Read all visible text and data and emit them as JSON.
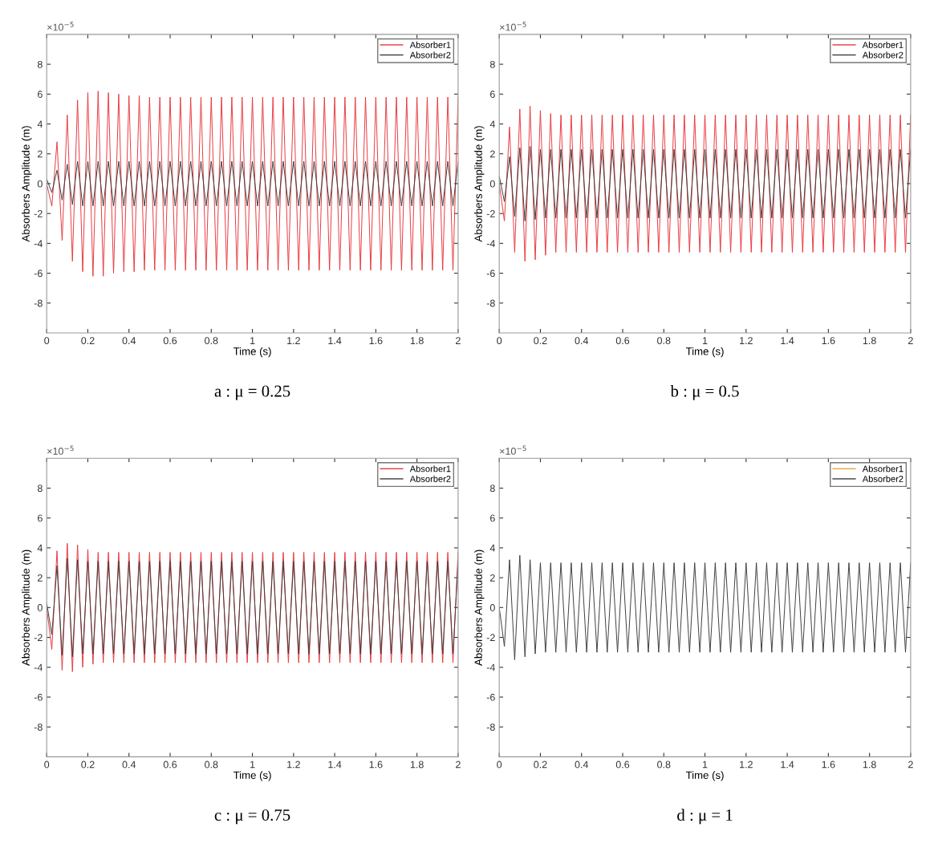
{
  "chart_data": [
    {
      "type": "line",
      "title": "a : μ = 0.25",
      "xlabel": "Time (s)",
      "ylabel": "Absorbers Amplitude (m)",
      "annotations": [
        "×10$^{−5}$"
      ],
      "xlim": [
        0,
        2
      ],
      "ylim": [
        -10,
        10
      ],
      "xticks": [
        0,
        0.2,
        0.4,
        0.6,
        0.8,
        1,
        1.2,
        1.4,
        1.6,
        1.8,
        2
      ],
      "yticks": [
        -8,
        -6,
        -4,
        -2,
        0,
        2,
        4,
        6,
        8
      ],
      "legend": "top right",
      "grid": false,
      "x": [
        0,
        0.025,
        0.05,
        0.075,
        0.1,
        0.125,
        0.15,
        0.175,
        0.2,
        0.225,
        0.25,
        0.275,
        0.3,
        0.325,
        0.35,
        0.375,
        0.4,
        0.425,
        0.45,
        0.475,
        0.5,
        0.525,
        0.55,
        0.575,
        0.6,
        0.625,
        0.65,
        0.675,
        0.7,
        0.725,
        0.75,
        0.775,
        0.8,
        0.825,
        0.85,
        0.875,
        0.9,
        0.925,
        0.95,
        0.975,
        1,
        1.025,
        1.05,
        1.075,
        1.1,
        1.125,
        1.15,
        1.175,
        1.2,
        1.225,
        1.25,
        1.275,
        1.3,
        1.325,
        1.35,
        1.375,
        1.4,
        1.425,
        1.45,
        1.475,
        1.5,
        1.525,
        1.55,
        1.575,
        1.6,
        1.625,
        1.65,
        1.675,
        1.7,
        1.725,
        1.75,
        1.775,
        1.8,
        1.825,
        1.85,
        1.875,
        1.9,
        1.925,
        1.95,
        1.975,
        2
      ],
      "series": [
        {
          "name": "Absorber1",
          "color": "#e8383d",
          "values": [
            0,
            -1.5,
            2.8,
            -3.8,
            4.6,
            -5.2,
            5.6,
            -5.9,
            6.1,
            -6.2,
            6.2,
            -6.2,
            6.1,
            -6,
            6,
            -5.9,
            5.9,
            -5.9,
            5.9,
            -5.8,
            5.8,
            -5.8,
            5.8,
            -5.8,
            5.8,
            -5.8,
            5.8,
            -5.8,
            5.8,
            -5.8,
            5.8,
            -5.8,
            5.8,
            -5.8,
            5.8,
            -5.8,
            5.8,
            -5.8,
            5.8,
            -5.8,
            5.8,
            -5.8,
            5.8,
            -5.8,
            5.8,
            -5.8,
            5.8,
            -5.8,
            5.8,
            -5.8,
            5.8,
            -5.8,
            5.8,
            -5.8,
            5.8,
            -5.8,
            5.8,
            -5.8,
            5.8,
            -5.8,
            5.8,
            -5.8,
            5.8,
            -5.8,
            5.8,
            -5.8,
            5.8,
            -5.8,
            5.8,
            -5.8,
            5.8,
            -5.8,
            5.8,
            -5.8,
            5.8,
            -5.8,
            5.8,
            -5.8,
            5.8,
            -5.8,
            5.8
          ]
        },
        {
          "name": "Absorber2",
          "color": "#3c3c3c",
          "values": [
            0.3,
            -0.6,
            0.9,
            -1.1,
            1.3,
            -1.4,
            1.5,
            -1.5,
            1.5,
            -1.5,
            1.5,
            -1.5,
            1.5,
            -1.5,
            1.5,
            -1.5,
            1.5,
            -1.5,
            1.5,
            -1.5,
            1.5,
            -1.5,
            1.5,
            -1.5,
            1.5,
            -1.5,
            1.5,
            -1.5,
            1.5,
            -1.5,
            1.5,
            -1.5,
            1.5,
            -1.5,
            1.5,
            -1.5,
            1.5,
            -1.5,
            1.5,
            -1.5,
            1.5,
            -1.5,
            1.5,
            -1.5,
            1.5,
            -1.5,
            1.5,
            -1.5,
            1.5,
            -1.5,
            1.5,
            -1.5,
            1.5,
            -1.5,
            1.5,
            -1.5,
            1.5,
            -1.5,
            1.5,
            -1.5,
            1.5,
            -1.5,
            1.5,
            -1.5,
            1.5,
            -1.5,
            1.5,
            -1.5,
            1.5,
            -1.5,
            1.5,
            -1.5,
            1.5,
            -1.5,
            1.5,
            -1.5,
            1.5,
            -1.5,
            1.5,
            -1.5,
            1.5
          ]
        }
      ]
    },
    {
      "type": "line",
      "title": "b : μ = 0.5",
      "xlabel": "Time (s)",
      "ylabel": "Absorbers Amplitude (m)",
      "annotations": [
        "×10$^{−5}$"
      ],
      "xlim": [
        0,
        2
      ],
      "ylim": [
        -10,
        10
      ],
      "xticks": [
        0,
        0.2,
        0.4,
        0.6,
        0.8,
        1,
        1.2,
        1.4,
        1.6,
        1.8,
        2
      ],
      "yticks": [
        -8,
        -6,
        -4,
        -2,
        0,
        2,
        4,
        6,
        8
      ],
      "legend": "top right",
      "grid": false,
      "x": [
        0,
        0.025,
        0.05,
        0.075,
        0.1,
        0.125,
        0.15,
        0.175,
        0.2,
        0.225,
        0.25,
        0.275,
        0.3,
        0.325,
        0.35,
        0.375,
        0.4,
        0.425,
        0.45,
        0.475,
        0.5,
        0.525,
        0.55,
        0.575,
        0.6,
        0.625,
        0.65,
        0.675,
        0.7,
        0.725,
        0.75,
        0.775,
        0.8,
        0.825,
        0.85,
        0.875,
        0.9,
        0.925,
        0.95,
        0.975,
        1,
        1.025,
        1.05,
        1.075,
        1.1,
        1.125,
        1.15,
        1.175,
        1.2,
        1.225,
        1.25,
        1.275,
        1.3,
        1.325,
        1.35,
        1.375,
        1.4,
        1.425,
        1.45,
        1.475,
        1.5,
        1.525,
        1.55,
        1.575,
        1.6,
        1.625,
        1.65,
        1.675,
        1.7,
        1.725,
        1.75,
        1.775,
        1.8,
        1.825,
        1.85,
        1.875,
        1.9,
        1.925,
        1.95,
        1.975,
        2
      ],
      "series": [
        {
          "name": "Absorber1",
          "color": "#e8383d",
          "values": [
            0,
            -2.5,
            3.8,
            -4.6,
            5,
            -5.2,
            5.2,
            -5.1,
            4.9,
            -4.8,
            4.7,
            -4.6,
            4.6,
            -4.6,
            4.6,
            -4.6,
            4.6,
            -4.6,
            4.6,
            -4.6,
            4.6,
            -4.6,
            4.6,
            -4.6,
            4.6,
            -4.6,
            4.6,
            -4.6,
            4.6,
            -4.6,
            4.6,
            -4.6,
            4.6,
            -4.6,
            4.6,
            -4.6,
            4.6,
            -4.6,
            4.6,
            -4.6,
            4.6,
            -4.6,
            4.6,
            -4.6,
            4.6,
            -4.6,
            4.6,
            -4.6,
            4.6,
            -4.6,
            4.6,
            -4.6,
            4.6,
            -4.6,
            4.6,
            -4.6,
            4.6,
            -4.6,
            4.6,
            -4.6,
            4.6,
            -4.6,
            4.6,
            -4.6,
            4.6,
            -4.6,
            4.6,
            -4.6,
            4.6,
            -4.6,
            4.6,
            -4.6,
            4.6,
            -4.6,
            4.6,
            -4.6,
            4.6,
            -4.6,
            4.6,
            -4.6,
            4.6
          ]
        },
        {
          "name": "Absorber2",
          "color": "#3c3c3c",
          "values": [
            0.5,
            -1.2,
            1.8,
            -2.2,
            2.4,
            -2.5,
            2.5,
            -2.4,
            2.3,
            -2.3,
            2.3,
            -2.3,
            2.3,
            -2.3,
            2.3,
            -2.3,
            2.3,
            -2.3,
            2.3,
            -2.3,
            2.3,
            -2.3,
            2.3,
            -2.3,
            2.3,
            -2.3,
            2.3,
            -2.3,
            2.3,
            -2.3,
            2.3,
            -2.3,
            2.3,
            -2.3,
            2.3,
            -2.3,
            2.3,
            -2.3,
            2.3,
            -2.3,
            2.3,
            -2.3,
            2.3,
            -2.3,
            2.3,
            -2.3,
            2.3,
            -2.3,
            2.3,
            -2.3,
            2.3,
            -2.3,
            2.3,
            -2.3,
            2.3,
            -2.3,
            2.3,
            -2.3,
            2.3,
            -2.3,
            2.3,
            -2.3,
            2.3,
            -2.3,
            2.3,
            -2.3,
            2.3,
            -2.3,
            2.3,
            -2.3,
            2.3,
            -2.3,
            2.3,
            -2.3,
            2.3,
            -2.3,
            2.3,
            -2.3,
            2.3,
            -2.3,
            2.3
          ]
        }
      ]
    },
    {
      "type": "line",
      "title": "c : μ = 0.75",
      "xlabel": "Time (s)",
      "ylabel": "Absorbers Amplitude (m)",
      "annotations": [
        "×10$^{−5}$"
      ],
      "xlim": [
        0,
        2
      ],
      "ylim": [
        -10,
        10
      ],
      "xticks": [
        0,
        0.2,
        0.4,
        0.6,
        0.8,
        1,
        1.2,
        1.4,
        1.6,
        1.8,
        2
      ],
      "yticks": [
        -8,
        -6,
        -4,
        -2,
        0,
        2,
        4,
        6,
        8
      ],
      "legend": "top right",
      "grid": false,
      "x": [
        0,
        0.025,
        0.05,
        0.075,
        0.1,
        0.125,
        0.15,
        0.175,
        0.2,
        0.225,
        0.25,
        0.275,
        0.3,
        0.325,
        0.35,
        0.375,
        0.4,
        0.425,
        0.45,
        0.475,
        0.5,
        0.525,
        0.55,
        0.575,
        0.6,
        0.625,
        0.65,
        0.675,
        0.7,
        0.725,
        0.75,
        0.775,
        0.8,
        0.825,
        0.85,
        0.875,
        0.9,
        0.925,
        0.95,
        0.975,
        1,
        1.025,
        1.05,
        1.075,
        1.1,
        1.125,
        1.15,
        1.175,
        1.2,
        1.225,
        1.25,
        1.275,
        1.3,
        1.325,
        1.35,
        1.375,
        1.4,
        1.425,
        1.45,
        1.475,
        1.5,
        1.525,
        1.55,
        1.575,
        1.6,
        1.625,
        1.65,
        1.675,
        1.7,
        1.725,
        1.75,
        1.775,
        1.8,
        1.825,
        1.85,
        1.875,
        1.9,
        1.925,
        1.95,
        1.975,
        2
      ],
      "series": [
        {
          "name": "Absorber1",
          "color": "#e8383d",
          "values": [
            0,
            -2.8,
            3.8,
            -4.2,
            4.3,
            -4.3,
            4.2,
            -4,
            3.9,
            -3.8,
            3.7,
            -3.7,
            3.7,
            -3.7,
            3.7,
            -3.7,
            3.7,
            -3.7,
            3.7,
            -3.7,
            3.7,
            -3.7,
            3.7,
            -3.7,
            3.7,
            -3.7,
            3.7,
            -3.7,
            3.7,
            -3.7,
            3.7,
            -3.7,
            3.7,
            -3.7,
            3.7,
            -3.7,
            3.7,
            -3.7,
            3.7,
            -3.7,
            3.7,
            -3.7,
            3.7,
            -3.7,
            3.7,
            -3.7,
            3.7,
            -3.7,
            3.7,
            -3.7,
            3.7,
            -3.7,
            3.7,
            -3.7,
            3.7,
            -3.7,
            3.7,
            -3.7,
            3.7,
            -3.7,
            3.7,
            -3.7,
            3.7,
            -3.7,
            3.7,
            -3.7,
            3.7,
            -3.7,
            3.7,
            -3.7,
            3.7,
            -3.7,
            3.7,
            -3.7,
            3.7,
            -3.7,
            3.7,
            -3.7,
            3.7,
            -3.7,
            3.7
          ]
        },
        {
          "name": "Absorber2",
          "color": "#3c3c3c",
          "values": [
            0.3,
            -1.8,
            2.8,
            -3.2,
            3.3,
            -3.3,
            3.2,
            -3.1,
            3.1,
            -3.1,
            3.1,
            -3.1,
            3.1,
            -3.1,
            3.1,
            -3.1,
            3.1,
            -3.1,
            3.1,
            -3.1,
            3.1,
            -3.1,
            3.1,
            -3.1,
            3.1,
            -3.1,
            3.1,
            -3.1,
            3.1,
            -3.1,
            3.1,
            -3.1,
            3.1,
            -3.1,
            3.1,
            -3.1,
            3.1,
            -3.1,
            3.1,
            -3.1,
            3.1,
            -3.1,
            3.1,
            -3.1,
            3.1,
            -3.1,
            3.1,
            -3.1,
            3.1,
            -3.1,
            3.1,
            -3.1,
            3.1,
            -3.1,
            3.1,
            -3.1,
            3.1,
            -3.1,
            3.1,
            -3.1,
            3.1,
            -3.1,
            3.1,
            -3.1,
            3.1,
            -3.1,
            3.1,
            -3.1,
            3.1,
            -3.1,
            3.1,
            -3.1,
            3.1,
            -3.1,
            3.1,
            -3.1,
            3.1,
            -3.1,
            3.1,
            -3.1,
            3.1
          ]
        }
      ]
    },
    {
      "type": "line",
      "title": "d : μ = 1",
      "xlabel": "Time (s)",
      "ylabel": "Absorbers Amplitude (m)",
      "annotations": [
        "×10$^{−5}$"
      ],
      "xlim": [
        0,
        2
      ],
      "ylim": [
        -10,
        10
      ],
      "xticks": [
        0,
        0.2,
        0.4,
        0.6,
        0.8,
        1,
        1.2,
        1.4,
        1.6,
        1.8,
        2
      ],
      "yticks": [
        -8,
        -6,
        -4,
        -2,
        0,
        2,
        4,
        6,
        8
      ],
      "legend": "top right",
      "grid": false,
      "x": [
        0,
        0.025,
        0.05,
        0.075,
        0.1,
        0.125,
        0.15,
        0.175,
        0.2,
        0.225,
        0.25,
        0.275,
        0.3,
        0.325,
        0.35,
        0.375,
        0.4,
        0.425,
        0.45,
        0.475,
        0.5,
        0.525,
        0.55,
        0.575,
        0.6,
        0.625,
        0.65,
        0.675,
        0.7,
        0.725,
        0.75,
        0.775,
        0.8,
        0.825,
        0.85,
        0.875,
        0.9,
        0.925,
        0.95,
        0.975,
        1,
        1.025,
        1.05,
        1.075,
        1.1,
        1.125,
        1.15,
        1.175,
        1.2,
        1.225,
        1.25,
        1.275,
        1.3,
        1.325,
        1.35,
        1.375,
        1.4,
        1.425,
        1.45,
        1.475,
        1.5,
        1.525,
        1.55,
        1.575,
        1.6,
        1.625,
        1.65,
        1.675,
        1.7,
        1.725,
        1.75,
        1.775,
        1.8,
        1.825,
        1.85,
        1.875,
        1.9,
        1.925,
        1.95,
        1.975,
        2
      ],
      "series": [
        {
          "name": "Absorber1",
          "color": "#e8a33a",
          "values": [
            null,
            null,
            null,
            null,
            null,
            null,
            null,
            null,
            null,
            null,
            null,
            null,
            null,
            null,
            null,
            null,
            null,
            null,
            null,
            null,
            null,
            null,
            null,
            null,
            null,
            null,
            null,
            null,
            null,
            null,
            null,
            null,
            null,
            null,
            null,
            null,
            null,
            null,
            null,
            null,
            null,
            null,
            null,
            null,
            null,
            null,
            null,
            null,
            null,
            null,
            null,
            null,
            null,
            null,
            null,
            null,
            null,
            null,
            null,
            null,
            null,
            null,
            null,
            null,
            null,
            null,
            null,
            null,
            null,
            null,
            null,
            null,
            null,
            null,
            null,
            null,
            null,
            null,
            null,
            null,
            null
          ]
        },
        {
          "name": "Absorber2",
          "color": "#3c3c3c",
          "values": [
            0,
            -2.6,
            3.2,
            -3.5,
            3.5,
            -3.3,
            3.2,
            -3.1,
            3,
            -3,
            3,
            -3,
            3,
            -3,
            3,
            -3,
            3,
            -3,
            3,
            -3,
            3,
            -3,
            3,
            -3,
            3,
            -3,
            3,
            -3,
            3,
            -3,
            3,
            -3,
            3,
            -3,
            3,
            -3,
            3,
            -3,
            3,
            -3,
            3,
            -3,
            3,
            -3,
            3,
            -3,
            3,
            -3,
            3,
            -3,
            3,
            -3,
            3,
            -3,
            3,
            -3,
            3,
            -3,
            3,
            -3,
            3,
            -3,
            3,
            -3,
            3,
            -3,
            3,
            -3,
            3,
            -3,
            3,
            -3,
            3,
            -3,
            3,
            -3,
            3,
            -3,
            3,
            -3,
            3
          ]
        }
      ]
    }
  ]
}
